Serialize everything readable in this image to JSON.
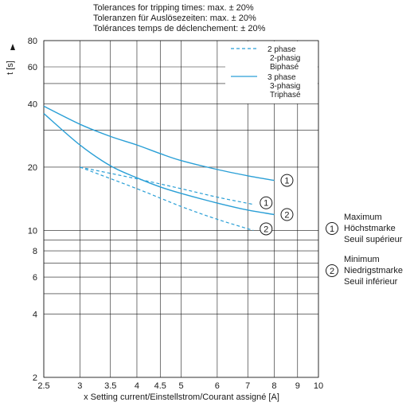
{
  "header": {
    "line1": "Tolerances for tripping times: max. ± 20%",
    "line2": "Toleranzen für Auslösezeiten: max. ± 20%",
    "line3": "Tolérances temps de déclenchement: ± 20%"
  },
  "colors": {
    "curve": "#2a9fd6",
    "grid": "#1a1a1a",
    "text": "#1a1a1a"
  },
  "chart_data": {
    "type": "line",
    "title": "",
    "xlabel": "x Setting current/Einstellstrom/Courant assigné [A]",
    "ylabel": "t [s]",
    "x_scale": "log",
    "y_scale": "log",
    "xlim": [
      2.5,
      10
    ],
    "ylim": [
      2,
      80
    ],
    "x_ticks": [
      2.5,
      3,
      3.5,
      4,
      4.5,
      5,
      6,
      7,
      8,
      9,
      10
    ],
    "x_tick_labels": [
      "2.5",
      "3",
      "3.5",
      "4",
      "4.5",
      "5",
      "6",
      "7",
      "8",
      "9",
      "10"
    ],
    "y_ticks": [
      2,
      4,
      6,
      8,
      10,
      20,
      40,
      60,
      80
    ],
    "y_tick_labels": [
      "2",
      "4",
      "6",
      "8",
      "10",
      "20",
      "40",
      "60",
      "80"
    ],
    "y_extra_gridlines": [
      5,
      7,
      9,
      30,
      50
    ],
    "grid": true,
    "legend_position": "top-right",
    "legend": [
      {
        "key": "2phase",
        "line_style": "dashed",
        "label_lines": [
          "2 phase",
          "2-phasig",
          "Biphasé"
        ]
      },
      {
        "key": "3phase",
        "line_style": "solid",
        "label_lines": [
          "3 phase",
          "3-phasig",
          "Triphasé"
        ]
      }
    ],
    "series": [
      {
        "phase": "3phase",
        "bound": "max",
        "marker": "1",
        "line_style": "solid",
        "x": [
          2.5,
          3,
          3.5,
          4,
          4.5,
          5,
          6,
          7,
          8
        ],
        "y": [
          39,
          32,
          28,
          25.5,
          23.2,
          21.5,
          19.5,
          18.2,
          17.3
        ]
      },
      {
        "phase": "3phase",
        "bound": "min",
        "marker": "2",
        "line_style": "solid",
        "x": [
          2.5,
          3,
          3.5,
          4,
          4.5,
          5,
          6,
          7,
          8
        ],
        "y": [
          36,
          25.5,
          20.3,
          17.8,
          16.1,
          15.0,
          13.5,
          12.5,
          11.9
        ]
      },
      {
        "phase": "2phase",
        "bound": "max",
        "marker": "1",
        "line_style": "dashed",
        "x": [
          3,
          4,
          5,
          6,
          7.2
        ],
        "y": [
          20,
          17.6,
          15.8,
          14.4,
          13.3
        ]
      },
      {
        "phase": "2phase",
        "bound": "min",
        "marker": "2",
        "line_style": "dashed",
        "x": [
          3,
          4,
          5,
          6,
          7.2
        ],
        "y": [
          20,
          15.8,
          13.0,
          11.3,
          10.0
        ]
      }
    ],
    "markers": [
      {
        "id": "1",
        "lines": [
          "Maximum",
          "Höchstmarke",
          "Seuil supérieur"
        ]
      },
      {
        "id": "2",
        "lines": [
          "Minimum",
          "Niedrigstmarke",
          "Seuil inférieur"
        ]
      }
    ]
  }
}
